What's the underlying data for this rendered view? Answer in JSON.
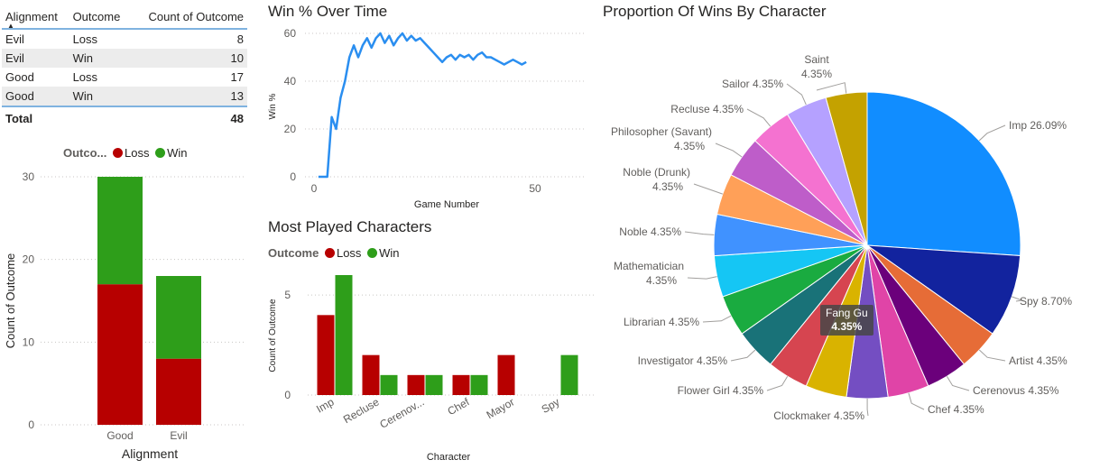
{
  "colors": {
    "loss": "#b70000",
    "win": "#2e9e1a",
    "line": "#2a8ef0",
    "axis": "#605e5c",
    "grid": "#c8c6c4"
  },
  "matrix": {
    "headers": [
      "Alignment",
      "Outcome",
      "Count of Outcome"
    ],
    "rows": [
      [
        "Evil",
        "Loss",
        "8"
      ],
      [
        "Evil",
        "Win",
        "10"
      ],
      [
        "Good",
        "Loss",
        "17"
      ],
      [
        "Good",
        "Win",
        "13"
      ]
    ],
    "total_label": "Total",
    "total_value": "48"
  },
  "legend_stacked": {
    "title": "Outco...",
    "loss": "Loss",
    "win": "Win"
  },
  "legend_clustered": {
    "title": "Outcome",
    "loss": "Loss",
    "win": "Win"
  },
  "tooltip": {
    "name": "Fang Gu",
    "value": "4.35%"
  },
  "chart_data": [
    {
      "id": "stacked",
      "type": "bar",
      "title": "",
      "categories": [
        "Good",
        "Evil"
      ],
      "series": [
        {
          "name": "Loss",
          "values": [
            17,
            8
          ]
        },
        {
          "name": "Win",
          "values": [
            13,
            10
          ]
        }
      ],
      "xlabel": "Alignment",
      "ylabel": "Count of Outcome",
      "ylim": [
        0,
        30
      ],
      "yticks": [
        0,
        10,
        20,
        30
      ],
      "grid": true,
      "legend": "top"
    },
    {
      "id": "winpct",
      "type": "line",
      "title": "Win % Over Time",
      "xlabel": "Game Number",
      "ylabel": "Win %",
      "xlim": [
        0,
        50
      ],
      "ylim": [
        0,
        60
      ],
      "xticks": [
        0,
        50
      ],
      "yticks": [
        0,
        20,
        40,
        60
      ],
      "grid": true,
      "x": [
        1,
        2,
        3,
        4,
        5,
        6,
        7,
        8,
        9,
        10,
        11,
        12,
        13,
        14,
        15,
        16,
        17,
        18,
        19,
        20,
        21,
        22,
        23,
        24,
        25,
        26,
        27,
        28,
        29,
        30,
        31,
        32,
        33,
        34,
        35,
        36,
        37,
        38,
        39,
        40,
        41,
        42,
        43,
        44,
        45,
        46,
        47,
        48
      ],
      "y": [
        0,
        0,
        0,
        25,
        20,
        33,
        40,
        50,
        55,
        50,
        55,
        58,
        54,
        58,
        60,
        56,
        59,
        55,
        58,
        60,
        57,
        59,
        57,
        58,
        56,
        54,
        52,
        50,
        48,
        50,
        51,
        49,
        51,
        50,
        51,
        49,
        51,
        52,
        50,
        50,
        49,
        48,
        47,
        48,
        49,
        48,
        47,
        48
      ]
    },
    {
      "id": "mostplayed",
      "type": "bar",
      "title": "Most Played Characters",
      "categories": [
        "Imp",
        "Recluse",
        "Cerenov...",
        "Chef",
        "Mayor",
        "Spy"
      ],
      "series": [
        {
          "name": "Loss",
          "values": [
            4,
            2,
            1,
            1,
            2,
            0
          ]
        },
        {
          "name": "Win",
          "values": [
            6,
            1,
            1,
            1,
            0,
            2
          ]
        }
      ],
      "xlabel": "Character",
      "ylabel": "Count of Outcome",
      "ylim": [
        0,
        6
      ],
      "yticks": [
        0,
        5
      ],
      "grid": true,
      "legend": "top-left"
    },
    {
      "id": "pie",
      "type": "pie",
      "title": "Proportion Of Wins By Character",
      "slices": [
        {
          "label": "Imp",
          "value": 26.09,
          "text": "26.09%",
          "color": "#118dff"
        },
        {
          "label": "Spy",
          "value": 8.7,
          "text": "8.70%",
          "color": "#12239e"
        },
        {
          "label": "Artist",
          "value": 4.35,
          "text": "4.35%",
          "color": "#e66c37"
        },
        {
          "label": "Cerenovus",
          "value": 4.35,
          "text": "4.35%",
          "color": "#6b007b"
        },
        {
          "label": "Chef",
          "value": 4.35,
          "text": "4.35%",
          "color": "#e044a7"
        },
        {
          "label": "Clockmaker",
          "value": 4.35,
          "text": "4.35%",
          "color": "#744ec2"
        },
        {
          "label": "Fang Gu",
          "value": 4.35,
          "text": "4.35%",
          "color": "#d9b300"
        },
        {
          "label": "Flower Girl",
          "value": 4.35,
          "text": "4.35%",
          "color": "#d64550"
        },
        {
          "label": "Investigator",
          "value": 4.35,
          "text": "4.35%",
          "color": "#197278"
        },
        {
          "label": "Librarian",
          "value": 4.35,
          "text": "4.35%",
          "color": "#1aab40"
        },
        {
          "label": "Mathematician",
          "value": 4.35,
          "text": "4.35%",
          "color": "#15c6f4"
        },
        {
          "label": "Noble",
          "value": 4.35,
          "text": "4.35%",
          "color": "#4092ff"
        },
        {
          "label": "Noble (Drunk)",
          "value": 4.35,
          "text": "4.35%",
          "color": "#ffa058"
        },
        {
          "label": "Philosopher (Savant)",
          "value": 4.35,
          "text": "4.35%",
          "color": "#be5dc9"
        },
        {
          "label": "Recluse",
          "value": 4.35,
          "text": "4.35%",
          "color": "#f472d0"
        },
        {
          "label": "Sailor",
          "value": 4.35,
          "text": "4.35%",
          "color": "#b5a1ff"
        },
        {
          "label": "Saint",
          "value": 4.35,
          "text": "4.35%",
          "color": "#c4a200"
        }
      ]
    }
  ]
}
